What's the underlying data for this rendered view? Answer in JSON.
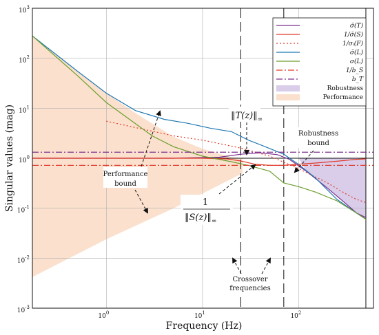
{
  "chart_data": {
    "type": "line",
    "xlabel": "Frequency (Hz)",
    "ylabel": "Singular values (mag)",
    "xscale": "log",
    "yscale": "log",
    "xlim": [
      0.17,
      600
    ],
    "ylim": [
      0.001,
      1000
    ],
    "x_ticks": [
      {
        "value": 1,
        "label": "10",
        "exp": "0"
      },
      {
        "value": 10,
        "label": "10",
        "exp": "1"
      },
      {
        "value": 100,
        "label": "10",
        "exp": "2"
      }
    ],
    "y_ticks": [
      {
        "value": 0.001,
        "label": "10",
        "exp": "-3"
      },
      {
        "value": 0.01,
        "label": "10",
        "exp": "-2"
      },
      {
        "value": 0.1,
        "label": "10",
        "exp": "-1"
      },
      {
        "value": 1,
        "label": "10",
        "exp": "0"
      },
      {
        "value": 10,
        "label": "10",
        "exp": "1"
      },
      {
        "value": 100,
        "label": "10",
        "exp": "2"
      },
      {
        "value": 1000,
        "label": "10",
        "exp": "3"
      }
    ],
    "grid": true,
    "legend_position": "top-right",
    "series": [
      {
        "name": "σ̄(T)",
        "color": "#7b2d8e",
        "style": "solid",
        "points": [
          [
            0.17,
            1.0
          ],
          [
            5,
            1.0
          ],
          [
            15,
            1.05
          ],
          [
            25,
            1.2
          ],
          [
            40,
            1.28
          ],
          [
            60,
            1.18
          ],
          [
            80,
            0.95
          ],
          [
            120,
            0.55
          ],
          [
            200,
            0.25
          ],
          [
            300,
            0.13
          ],
          [
            400,
            0.08
          ],
          [
            500,
            0.065
          ]
        ]
      },
      {
        "name": "1/σ̄(S)",
        "color": "#e03a2a",
        "style": "solid",
        "points": [
          [
            0.17,
            1.0
          ],
          [
            10,
            1.0
          ],
          [
            18,
            0.97
          ],
          [
            25,
            0.88
          ],
          [
            35,
            0.76
          ],
          [
            50,
            0.72
          ],
          [
            70,
            0.72
          ],
          [
            100,
            0.76
          ],
          [
            150,
            0.8
          ],
          [
            250,
            0.87
          ],
          [
            400,
            0.95
          ],
          [
            500,
            0.97
          ]
        ]
      },
      {
        "name": "1/σᵢ(F)",
        "color": "#e03a2a",
        "style": "dotted",
        "points": [
          [
            1,
            5.5
          ],
          [
            5,
            2.8
          ],
          [
            10,
            2.3
          ],
          [
            25,
            1.6
          ],
          [
            50,
            1.1
          ],
          [
            100,
            0.62
          ],
          [
            200,
            0.32
          ],
          [
            300,
            0.2
          ],
          [
            400,
            0.15
          ],
          [
            500,
            0.13
          ]
        ]
      },
      {
        "name": "σ̄(L)",
        "color": "#1f78b4",
        "style": "solid",
        "points": [
          [
            0.17,
            280
          ],
          [
            0.5,
            55
          ],
          [
            1,
            20
          ],
          [
            2,
            9
          ],
          [
            4,
            6
          ],
          [
            7,
            5
          ],
          [
            12,
            4
          ],
          [
            20,
            3.4
          ],
          [
            30,
            2.3
          ],
          [
            45,
            1.7
          ],
          [
            70,
            1.2
          ],
          [
            100,
            0.75
          ],
          [
            150,
            0.4
          ],
          [
            250,
            0.15
          ],
          [
            400,
            0.08
          ],
          [
            500,
            0.06
          ]
        ]
      },
      {
        "name": "σ(L)",
        "color": "#6b9e2d",
        "style": "solid",
        "points": [
          [
            0.17,
            280
          ],
          [
            0.5,
            45
          ],
          [
            1,
            13
          ],
          [
            3,
            2.8
          ],
          [
            5,
            1.7
          ],
          [
            10,
            1.1
          ],
          [
            20,
            0.85
          ],
          [
            30,
            0.72
          ],
          [
            50,
            0.55
          ],
          [
            70,
            0.32
          ],
          [
            100,
            0.27
          ],
          [
            150,
            0.21
          ],
          [
            250,
            0.14
          ],
          [
            400,
            0.08
          ],
          [
            500,
            0.06
          ]
        ]
      },
      {
        "name": "1/b_S",
        "color": "#e03a2a",
        "style": "dashdot",
        "value": 0.72
      },
      {
        "name": "b_T",
        "color": "#7b2d8e",
        "style": "dashdot",
        "value": 1.32
      }
    ],
    "regions": [
      {
        "name": "Robustness",
        "color": "#d9cdea",
        "points": [
          [
            100,
            1
          ],
          [
            500,
            1
          ],
          [
            500,
            0.06
          ],
          [
            400,
            0.08
          ],
          [
            300,
            0.13
          ],
          [
            200,
            0.25
          ],
          [
            120,
            0.55
          ]
        ]
      },
      {
        "name": "Performance",
        "color": "#fbe0cd",
        "points": [
          [
            0.17,
            280
          ],
          [
            0.5,
            55
          ],
          [
            1,
            20
          ],
          [
            2,
            8
          ],
          [
            5,
            2.7
          ],
          [
            10,
            1.55
          ],
          [
            20,
            1.05
          ],
          [
            26,
            1
          ],
          [
            26,
            0.5
          ],
          [
            5,
            0.1
          ],
          [
            1,
            0.024
          ],
          [
            0.17,
            0.0042
          ]
        ]
      }
    ],
    "vlines": [
      25,
      70
    ],
    "hline": 1,
    "right_border_x": 500,
    "annotations": {
      "norm_T": "‖T(z)‖",
      "norm_T_sub": "∞",
      "robustness_bound_1": "Robustness",
      "robustness_bound_2": "bound",
      "performance_bound_1": "Performance",
      "performance_bound_2": "bound",
      "frac_num": "1",
      "frac_den": "‖S(z)‖",
      "frac_den_sub": "∞",
      "crossover_1": "Crossover",
      "crossover_2": "frequencies"
    }
  }
}
